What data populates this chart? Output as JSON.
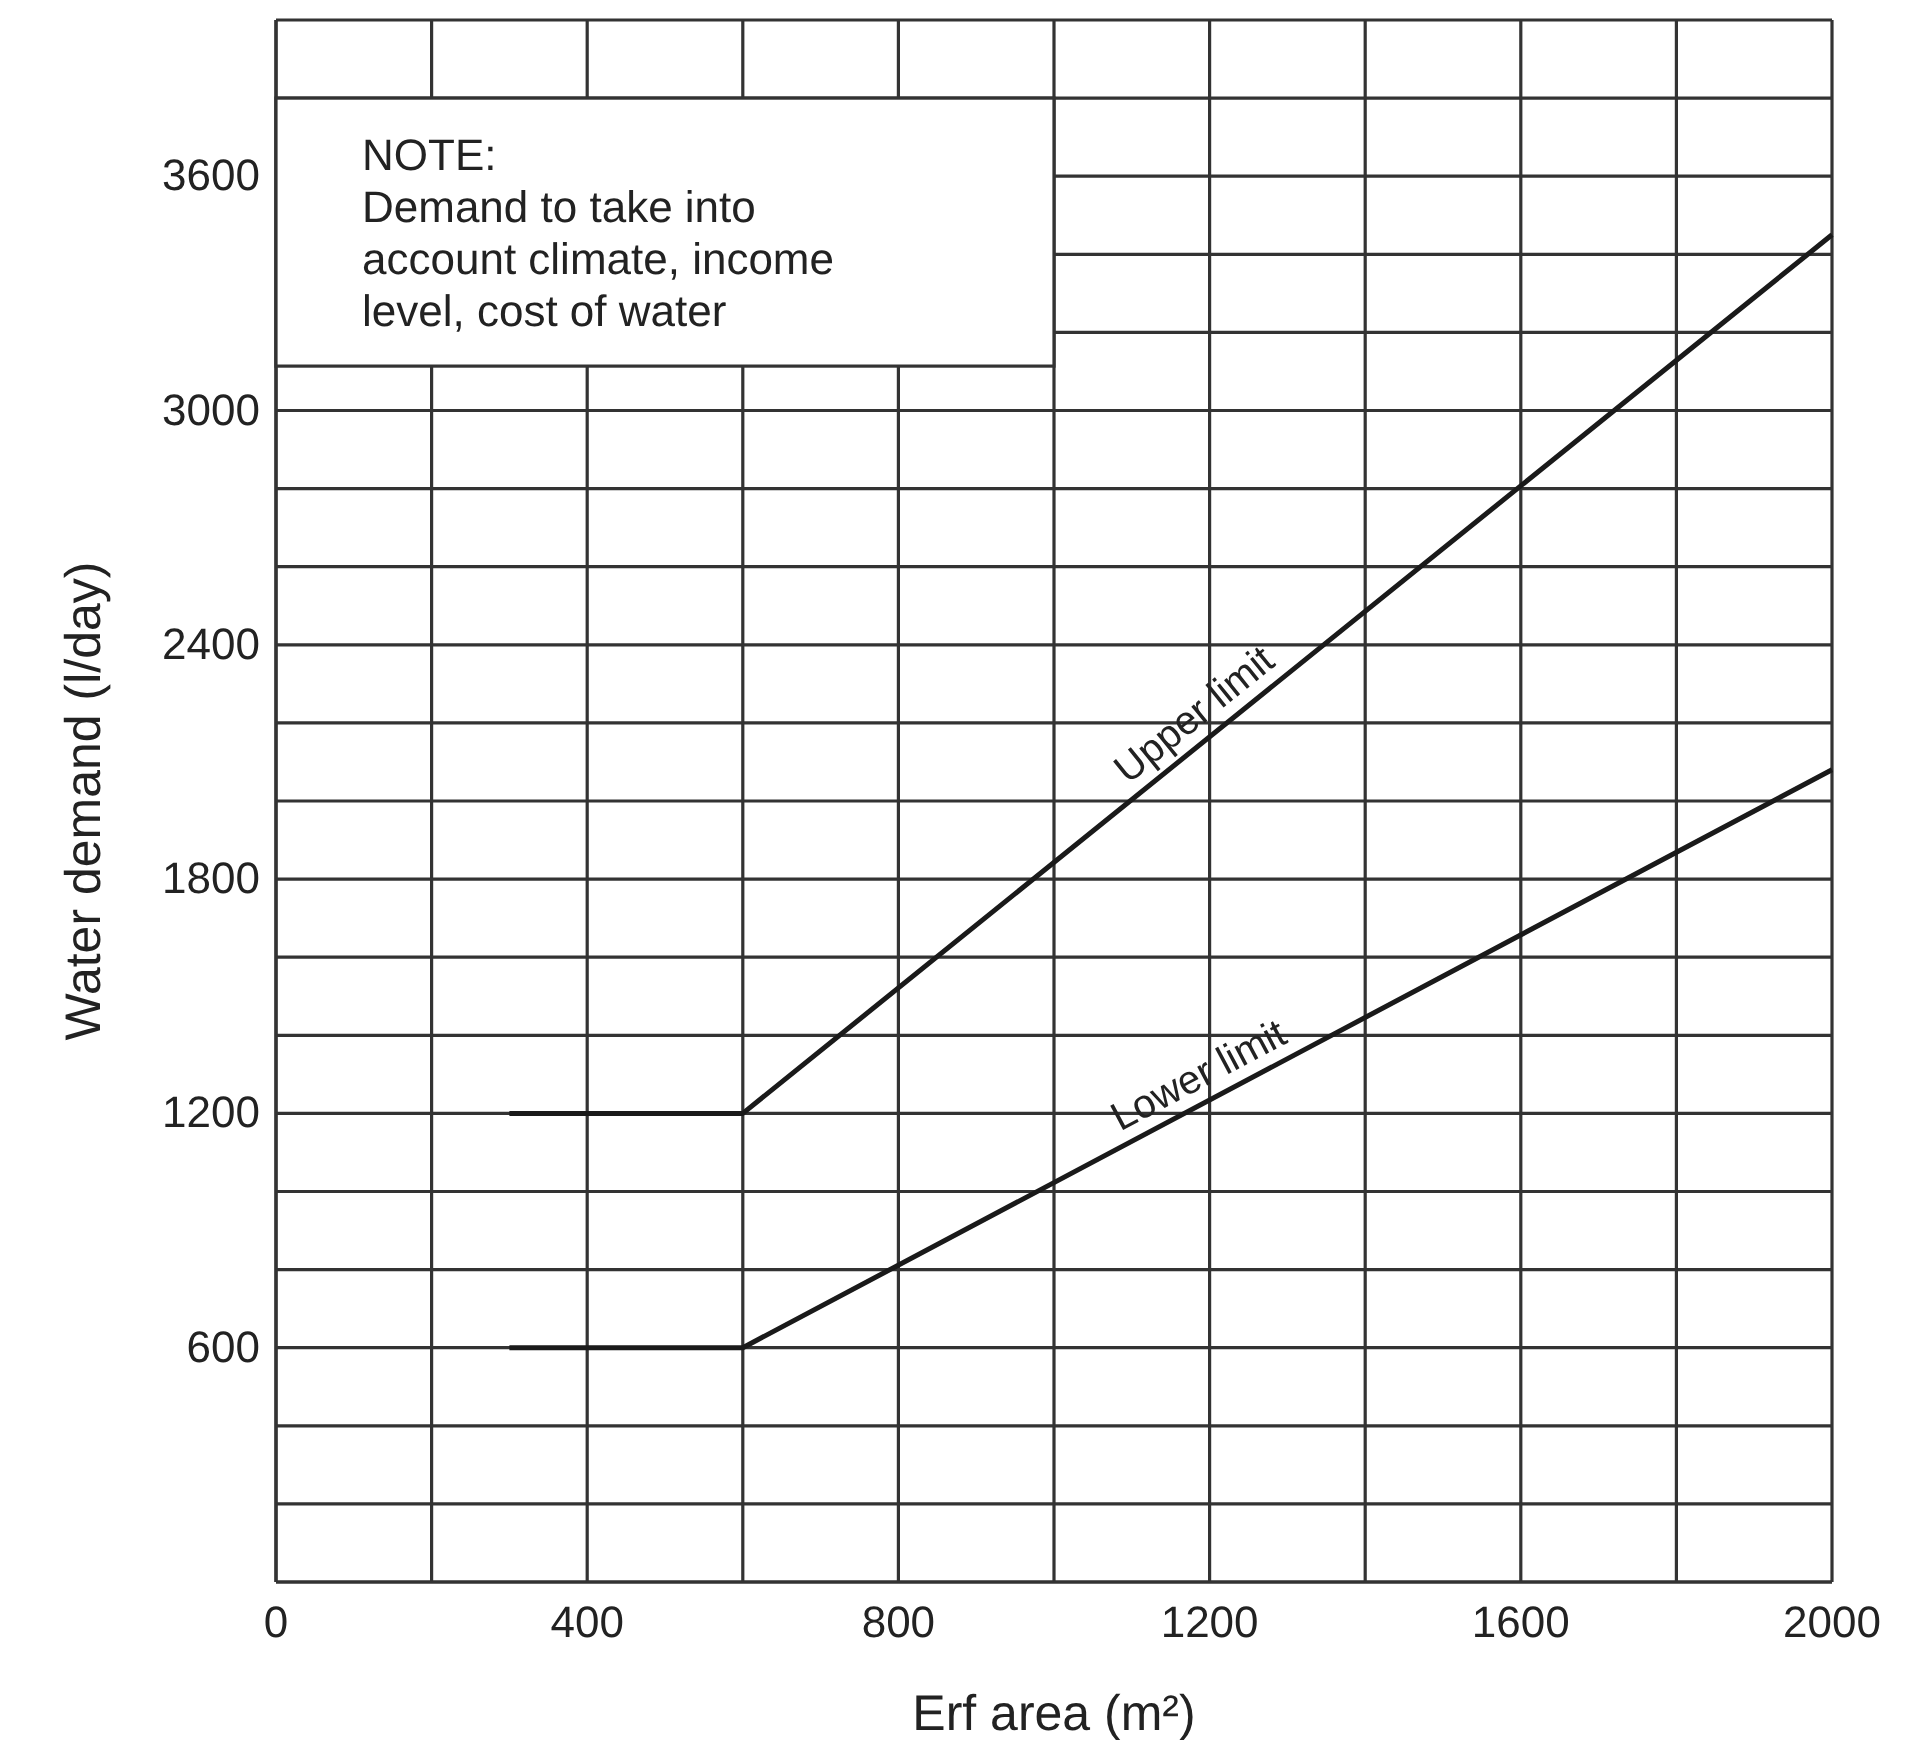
{
  "chart_data": {
    "type": "line",
    "xlabel": "Erf area (m²)",
    "ylabel": "Water demand (l/day)",
    "xlim": [
      0,
      2000
    ],
    "ylim": [
      0,
      4000
    ],
    "xticks": [
      0,
      {
        "value": 200,
        "label": null
      },
      400,
      {
        "value": 600,
        "label": null
      },
      800,
      {
        "value": 1000,
        "label": null
      },
      1200,
      {
        "value": 1400,
        "label": null
      },
      1600,
      {
        "value": 1800,
        "label": null
      },
      2000
    ],
    "yticks": [
      {
        "value": 0,
        "label": null
      },
      {
        "value": 200,
        "label": null
      },
      {
        "value": 400,
        "label": null
      },
      600,
      {
        "value": 800,
        "label": null
      },
      {
        "value": 1000,
        "label": null
      },
      1200,
      {
        "value": 1400,
        "label": null
      },
      {
        "value": 1600,
        "label": null
      },
      1800,
      {
        "value": 2000,
        "label": null
      },
      {
        "value": 2200,
        "label": null
      },
      2400,
      {
        "value": 2600,
        "label": null
      },
      {
        "value": 2800,
        "label": null
      },
      3000,
      {
        "value": 3200,
        "label": null
      },
      {
        "value": 3400,
        "label": null
      },
      3600,
      {
        "value": 3800,
        "label": null
      },
      {
        "value": 4000,
        "label": null
      }
    ],
    "grid": true,
    "legend": false,
    "marker": "none",
    "line_style": "solid",
    "series": [
      {
        "name": "Upper limit",
        "color": "#1a1a1a",
        "x": [
          300,
          600,
          2000
        ],
        "values": [
          1200,
          1200,
          3450
        ]
      },
      {
        "name": "Lower limit",
        "color": "#1a1a1a",
        "x": [
          300,
          600,
          2000
        ],
        "values": [
          600,
          600,
          2080
        ]
      }
    ],
    "annotations": [
      "NOTE:\nDemand to take into\naccount climate, income\nlevel, cost of water"
    ]
  }
}
